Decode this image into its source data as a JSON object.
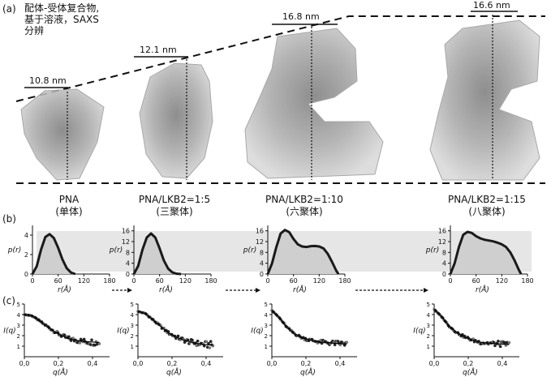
{
  "figure": {
    "panel_a_label": "(a)",
    "panel_b_label": "(b)",
    "panel_c_label": "(c)",
    "caption_lines": [
      "配体-受体复合物,",
      "基于溶液，SAXS",
      "分辨"
    ]
  },
  "structures": [
    {
      "size": "10.8 nm",
      "name": "PNA",
      "state": "(单体)"
    },
    {
      "size": "12.1 nm",
      "name": "PNA/LKB2=1:5",
      "state": "(三聚体)"
    },
    {
      "size": "16.8 nm",
      "name": "PNA/LKB2=1:10",
      "state": "(六聚体)"
    },
    {
      "size": "16.6 nm",
      "name": "PNA/LKB2=1:15",
      "state": "(八聚体)"
    }
  ],
  "axis_labels": {
    "pr_y": "p(r)",
    "pr_x": "r(Å)",
    "iq_y": "I(q)",
    "iq_x": "q(Å)"
  },
  "chart_data": [
    {
      "type": "area",
      "panel": "b",
      "x": [
        0,
        10,
        20,
        30,
        40,
        50,
        60,
        70,
        80,
        90,
        100
      ],
      "y": [
        0,
        0.8,
        2.5,
        3.8,
        4.1,
        3.7,
        2.7,
        1.5,
        0.6,
        0.15,
        0
      ],
      "xticks": [
        "0",
        "60",
        "120",
        "180"
      ],
      "yticks": [
        "0",
        "2",
        "4"
      ],
      "xlim": [
        0,
        180
      ],
      "ylim": [
        0,
        5
      ]
    },
    {
      "type": "area",
      "panel": "b",
      "x": [
        0,
        10,
        20,
        30,
        40,
        50,
        60,
        70,
        80,
        90,
        100,
        110
      ],
      "y": [
        0,
        3,
        9,
        13.5,
        15,
        13.5,
        9.5,
        5,
        2,
        0.6,
        0.1,
        0
      ],
      "xticks": [
        "0",
        "60",
        "120",
        "180"
      ],
      "yticks": [
        "0",
        "4",
        "8",
        "12",
        "16"
      ],
      "xlim": [
        0,
        180
      ],
      "ylim": [
        0,
        18
      ]
    },
    {
      "type": "area",
      "panel": "b",
      "x": [
        0,
        10,
        20,
        30,
        40,
        50,
        60,
        70,
        80,
        90,
        100,
        110,
        120,
        130,
        140,
        150,
        160,
        165
      ],
      "y": [
        0,
        4,
        10,
        15,
        16.3,
        15.5,
        13,
        11,
        10.2,
        10,
        10.3,
        10.4,
        10.2,
        9.5,
        7.5,
        4.5,
        1.2,
        0
      ],
      "xticks": [
        "0",
        "60",
        "120",
        "180"
      ],
      "yticks": [
        "0",
        "4",
        "8",
        "12",
        "16"
      ],
      "xlim": [
        0,
        180
      ],
      "ylim": [
        0,
        18
      ]
    },
    {
      "type": "area",
      "panel": "b",
      "x": [
        0,
        10,
        20,
        30,
        40,
        50,
        60,
        70,
        80,
        90,
        100,
        110,
        120,
        130,
        140,
        150,
        160,
        165
      ],
      "y": [
        0,
        4,
        10,
        14.5,
        15.6,
        15.2,
        14,
        13.2,
        12.7,
        12.4,
        12.1,
        11.6,
        11,
        10,
        8,
        5,
        1.5,
        0
      ],
      "xticks": [
        "0",
        "60",
        "120",
        "180"
      ],
      "yticks": [
        "0",
        "4",
        "8",
        "12",
        "16"
      ],
      "xlim": [
        0,
        180
      ],
      "ylim": [
        0,
        18
      ]
    },
    {
      "type": "scatter",
      "panel": "c",
      "x_range": [
        0.0,
        0.44
      ],
      "curve_y": [
        4.0,
        3.9,
        3.4,
        2.9,
        2.4,
        2.0,
        1.7,
        1.55,
        1.45,
        1.4,
        1.35
      ],
      "xticks": [
        "0,0",
        "0,2",
        "0,4"
      ],
      "yticks": [
        "1",
        "2",
        "3",
        "4",
        "5"
      ],
      "xlim": [
        0,
        0.5
      ],
      "ylim": [
        0,
        5
      ],
      "noise": 0.35
    },
    {
      "type": "scatter",
      "panel": "c",
      "x_range": [
        0.0,
        0.44
      ],
      "curve_y": [
        4.3,
        4.1,
        3.5,
        2.9,
        2.3,
        1.9,
        1.6,
        1.4,
        1.25,
        1.15,
        1.1
      ],
      "xticks": [
        "0,0",
        "0,2",
        "0,4"
      ],
      "yticks": [
        "1",
        "2",
        "3",
        "4",
        "5"
      ],
      "xlim": [
        0,
        0.5
      ],
      "ylim": [
        0,
        5
      ],
      "noise": 0.35
    },
    {
      "type": "scatter",
      "panel": "c",
      "x_range": [
        0.0,
        0.44
      ],
      "curve_y": [
        4.4,
        3.7,
        2.8,
        2.2,
        1.8,
        1.6,
        1.45,
        1.35,
        1.3,
        1.25,
        1.2
      ],
      "xticks": [
        "0,0",
        "0,2",
        "0,4"
      ],
      "yticks": [
        "1",
        "2",
        "3",
        "4",
        "5"
      ],
      "xlim": [
        0,
        0.5
      ],
      "ylim": [
        0,
        5
      ],
      "noise": 0.3
    },
    {
      "type": "scatter",
      "panel": "c",
      "x_range": [
        0.0,
        0.44
      ],
      "curve_y": [
        4.5,
        3.8,
        2.9,
        2.3,
        1.9,
        1.6,
        1.4,
        1.3,
        1.25,
        1.2,
        1.15
      ],
      "xticks": [
        "0,0",
        "0,2",
        "0,4"
      ],
      "yticks": [
        "1",
        "2",
        "3",
        "4",
        "5"
      ],
      "xlim": [
        0,
        0.5
      ],
      "ylim": [
        0,
        5
      ],
      "noise": 0.3
    }
  ]
}
